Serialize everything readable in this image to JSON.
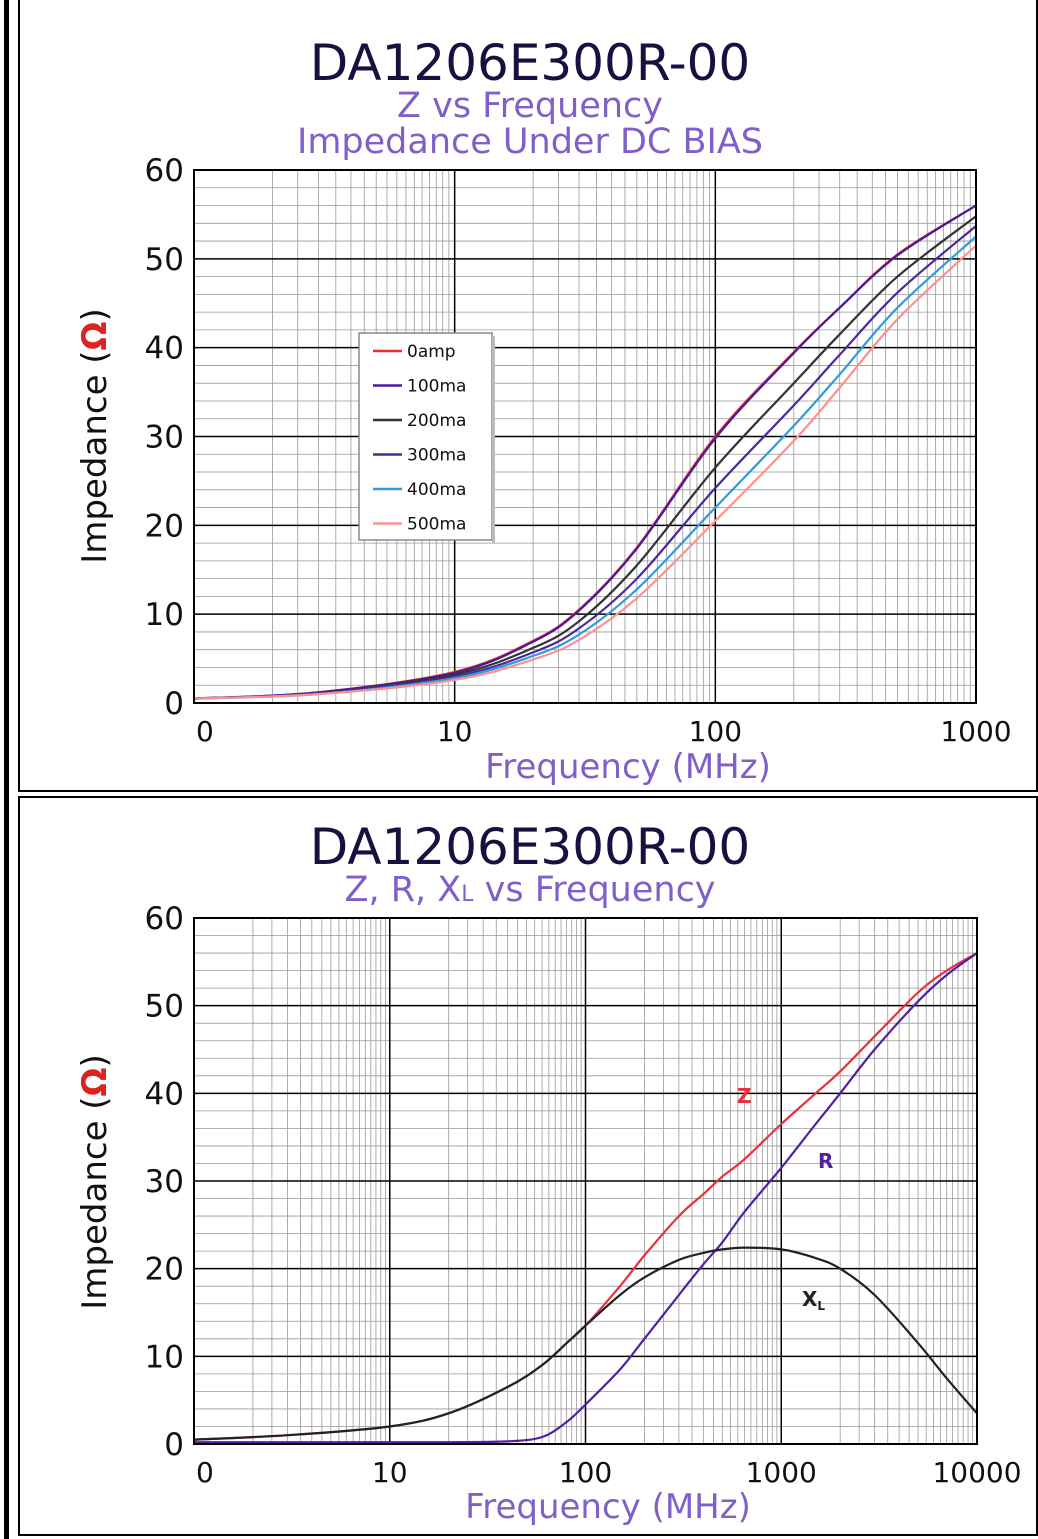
{
  "chart_data": [
    {
      "type": "line",
      "title": "DA1206E300R-00",
      "subtitle": [
        "Z vs Frequency",
        "Impedance Under DC BIAS"
      ],
      "xlabel": "Frequency (MHz)",
      "ylabel": "Impedance (Ω)",
      "ylabel_text": "Impedance (",
      "ylabel_symbol": "Ω",
      "ylabel_close": ")",
      "x_scale": "log",
      "xlim": [
        1,
        1000
      ],
      "ylim": [
        0,
        60
      ],
      "x_ticks": [
        "0",
        "10",
        "100",
        "1000"
      ],
      "y_ticks": [
        "0",
        "10",
        "20",
        "30",
        "40",
        "50",
        "60"
      ],
      "grid": true,
      "legend_position": "center-left",
      "x": [
        1,
        3,
        10,
        20,
        30,
        50,
        100,
        200,
        300,
        500,
        1000
      ],
      "series": [
        {
          "name": "0amp",
          "color": "#e8302a",
          "values": [
            0.5,
            1.2,
            3.5,
            7.0,
            10.5,
            17.5,
            30.0,
            39.5,
            44.5,
            50.5,
            56.0
          ]
        },
        {
          "name": "100ma",
          "color": "#4a1a9a",
          "values": [
            0.5,
            1.2,
            3.4,
            6.9,
            10.4,
            17.4,
            29.8,
            39.4,
            44.5,
            50.4,
            56.0
          ]
        },
        {
          "name": "200ma",
          "color": "#333333",
          "values": [
            0.5,
            1.1,
            3.2,
            6.2,
            9.2,
            15.5,
            26.5,
            36.0,
            41.5,
            48.0,
            54.8
          ]
        },
        {
          "name": "300ma",
          "color": "#4a2a9a",
          "values": [
            0.5,
            1.1,
            3.0,
            5.7,
            8.4,
            14.0,
            24.2,
            33.5,
            39.2,
            46.2,
            53.7
          ]
        },
        {
          "name": "400ma",
          "color": "#3399dd",
          "values": [
            0.5,
            1.0,
            2.8,
            5.3,
            7.7,
            12.8,
            22.0,
            31.2,
            37.0,
            44.5,
            52.5
          ]
        },
        {
          "name": "500ma",
          "color": "#ff9090",
          "values": [
            0.5,
            1.0,
            2.6,
            4.9,
            7.1,
            11.8,
            20.5,
            29.5,
            35.5,
            43.2,
            51.5
          ]
        }
      ]
    },
    {
      "type": "line",
      "title": "DA1206E300R-00",
      "subtitle": [
        "Z, R, XL vs Frequency"
      ],
      "subtitle_parts": {
        "pre": "Z, R, X",
        "sub": "L",
        "post": " vs Frequency"
      },
      "xlabel": "Frequency (MHz)",
      "ylabel": "Impedance (Ω)",
      "ylabel_text": "Impedance (",
      "ylabel_symbol": "Ω",
      "ylabel_close": ")",
      "x_scale": "log",
      "xlim": [
        1,
        10000
      ],
      "ylim": [
        0,
        60
      ],
      "x_ticks": [
        "0",
        "10",
        "100",
        "1000",
        "10000"
      ],
      "y_ticks": [
        "0",
        "10",
        "20",
        "30",
        "40",
        "50",
        "60"
      ],
      "grid": true,
      "x": [
        1,
        3,
        10,
        20,
        40,
        60,
        80,
        100,
        150,
        200,
        300,
        400,
        500,
        650,
        1000,
        1500,
        2000,
        3000,
        5000,
        7000,
        10000
      ],
      "series": [
        {
          "name": "Z",
          "label": "Z",
          "color": "#e83040",
          "values": [
            0.5,
            1.0,
            2.0,
            3.5,
            6.5,
            9.0,
            11.5,
            13.5,
            18.0,
            21.5,
            26.0,
            28.5,
            30.5,
            32.5,
            36.5,
            40.0,
            42.5,
            46.5,
            51.5,
            54.0,
            56.0
          ]
        },
        {
          "name": "R",
          "label": "R",
          "color": "#5020a0",
          "values": [
            0.2,
            0.2,
            0.2,
            0.2,
            0.3,
            0.8,
            2.5,
            4.5,
            8.5,
            12.0,
            17.0,
            20.5,
            23.0,
            26.5,
            31.5,
            36.5,
            40.0,
            45.0,
            50.5,
            53.5,
            56.0
          ]
        },
        {
          "name": "XL",
          "label": "X",
          "label_sub": "L",
          "color": "#222222",
          "values": [
            0.5,
            1.0,
            2.0,
            3.5,
            6.5,
            9.0,
            11.5,
            13.5,
            17.0,
            19.0,
            21.0,
            21.8,
            22.2,
            22.4,
            22.2,
            21.2,
            20.0,
            17.0,
            11.5,
            7.5,
            3.5
          ]
        }
      ]
    }
  ]
}
